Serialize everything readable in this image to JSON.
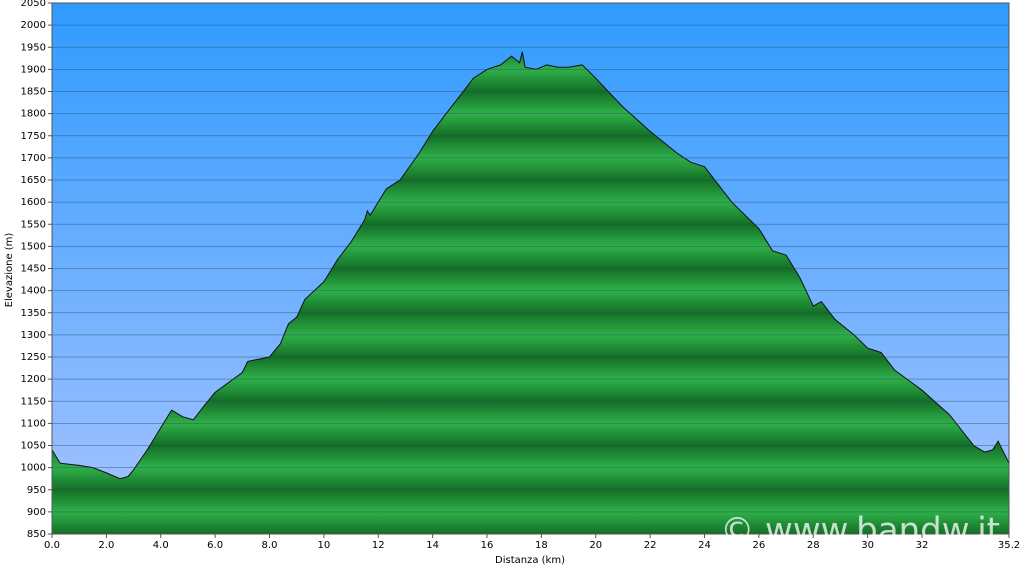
{
  "chart_data": {
    "type": "area",
    "x_label": "Distanza   (km)",
    "y_label": "Elevazione (m)",
    "annotation": "© www.bandw.it",
    "color": "#1f9a3a",
    "grid": true,
    "xlim": [
      0,
      35.2
    ],
    "ylim": [
      850,
      2050
    ],
    "xticks": [
      {
        "value": 0,
        "label": "0.0"
      },
      {
        "value": 2,
        "label": "2.0"
      },
      {
        "value": 4,
        "label": "4.0"
      },
      {
        "value": 6,
        "label": "6.0"
      },
      {
        "value": 8,
        "label": "8.0"
      },
      10,
      12,
      14,
      16,
      18,
      20,
      22,
      24,
      26,
      28,
      30,
      32,
      35.2
    ],
    "yticks": [
      850,
      900,
      950,
      1000,
      1050,
      1100,
      1150,
      1200,
      1250,
      1300,
      1350,
      1400,
      1450,
      1500,
      1550,
      1600,
      1650,
      1700,
      1750,
      1800,
      1850,
      1900,
      1950,
      2000,
      2050
    ],
    "x": [
      0,
      0.3,
      1.0,
      1.5,
      2.0,
      2.5,
      2.8,
      3.0,
      3.5,
      4.0,
      4.4,
      4.8,
      5.2,
      5.6,
      6.0,
      7.0,
      7.2,
      8.0,
      8.4,
      8.7,
      9.0,
      9.3,
      10.0,
      10.5,
      11.0,
      11.5,
      11.6,
      11.7,
      12.3,
      12.8,
      13.5,
      14.0,
      15.0,
      15.5,
      16.0,
      16.5,
      16.9,
      17.2,
      17.3,
      17.4,
      17.8,
      18.2,
      18.6,
      19.0,
      19.5,
      20.0,
      21.0,
      22.0,
      23.0,
      23.5,
      24.0,
      25.0,
      26.0,
      26.5,
      27.0,
      27.5,
      28.0,
      28.3,
      28.8,
      29.5,
      30.0,
      30.5,
      31.0,
      32.0,
      33.0,
      33.9,
      34.3,
      34.6,
      34.8,
      35.2
    ],
    "y": [
      1040,
      1010,
      1005,
      1000,
      988,
      975,
      980,
      995,
      1040,
      1090,
      1130,
      1115,
      1108,
      1140,
      1170,
      1215,
      1240,
      1250,
      1280,
      1325,
      1340,
      1380,
      1420,
      1470,
      1510,
      1560,
      1580,
      1570,
      1630,
      1650,
      1710,
      1760,
      1840,
      1880,
      1900,
      1910,
      1930,
      1915,
      1940,
      1905,
      1900,
      1910,
      1905,
      1905,
      1910,
      1880,
      1815,
      1760,
      1710,
      1690,
      1680,
      1600,
      1540,
      1490,
      1480,
      1430,
      1365,
      1375,
      1335,
      1300,
      1270,
      1260,
      1220,
      1175,
      1120,
      1050,
      1035,
      1040,
      1060,
      1010
    ]
  }
}
